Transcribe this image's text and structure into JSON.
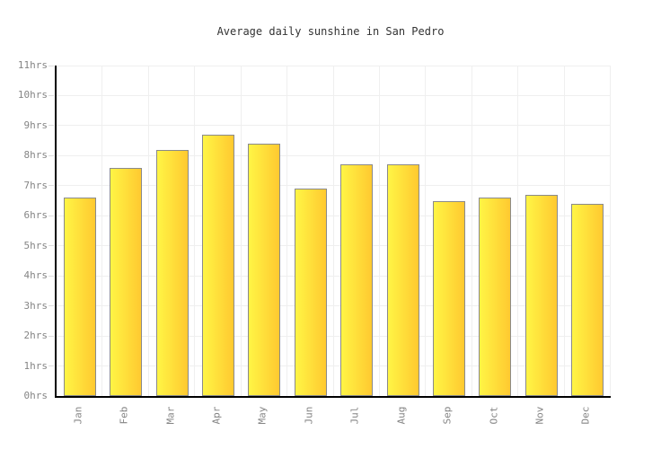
{
  "title": "Average daily sunshine in San Pedro",
  "chart_data": {
    "type": "bar",
    "title": "Average daily sunshine in San Pedro",
    "categories": [
      "Jan",
      "Feb",
      "Mar",
      "Apr",
      "May",
      "Jun",
      "Jul",
      "Aug",
      "Sep",
      "Oct",
      "Nov",
      "Dec"
    ],
    "values": [
      6.6,
      7.6,
      8.2,
      8.7,
      8.4,
      6.9,
      7.7,
      7.7,
      6.5,
      6.6,
      6.7,
      6.4
    ],
    "unit": "hrs",
    "xlabel": "",
    "ylabel": "",
    "ylim": [
      0,
      11
    ],
    "y_tick_step": 1,
    "y_tick_labels": [
      "0hrs",
      "1hrs",
      "2hrs",
      "3hrs",
      "4hrs",
      "5hrs",
      "6hrs",
      "7hrs",
      "8hrs",
      "9hrs",
      "10hrs",
      "11hrs"
    ],
    "grid": true,
    "legend": false,
    "colors": {
      "bar_gradient_left": "#FFF545",
      "bar_gradient_right": "#FFC930",
      "bar_border": "#8A8A8A",
      "gridline": "#EFEFEF",
      "tick": "#DDDDDD",
      "axis": "#000000",
      "tick_label": "#858585",
      "title": "#333333",
      "background": "#FFFFFF"
    }
  }
}
